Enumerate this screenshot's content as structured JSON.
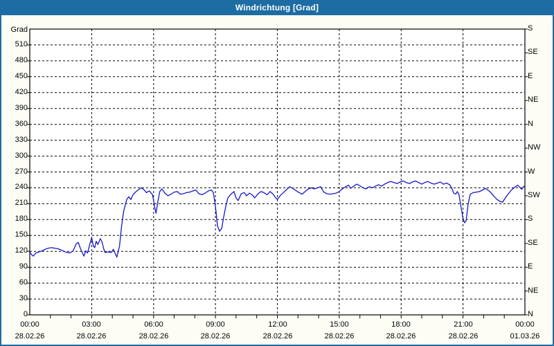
{
  "window": {
    "title": "Windrichtung [Grad]"
  },
  "colors": {
    "titlebar": "#1d6ca3",
    "window_border": "#1d6ca3",
    "background": "#fdfdf6",
    "plot_background": "#ffffff",
    "plot_border": "#000000",
    "grid": "#000000",
    "text": "#000000",
    "line": "#1515c8"
  },
  "chart_data": {
    "type": "line",
    "title": "Windrichtung [Grad]",
    "grid": "dashed",
    "y_axis_left": {
      "label": "Grad",
      "min": 0,
      "max": 540,
      "tick_step": 30,
      "tick_labels": [
        0,
        30,
        60,
        90,
        120,
        150,
        180,
        210,
        240,
        270,
        300,
        330,
        360,
        390,
        420,
        450,
        480,
        510
      ]
    },
    "y_axis_right": {
      "tick_step": 45,
      "labels": [
        {
          "deg": 540,
          "text": "S"
        },
        {
          "deg": 495,
          "text": "SE"
        },
        {
          "deg": 450,
          "text": "E"
        },
        {
          "deg": 405,
          "text": "NE"
        },
        {
          "deg": 360,
          "text": "N"
        },
        {
          "deg": 315,
          "text": "NW"
        },
        {
          "deg": 270,
          "text": "W"
        },
        {
          "deg": 225,
          "text": "SW"
        },
        {
          "deg": 180,
          "text": "S"
        },
        {
          "deg": 135,
          "text": "SE"
        },
        {
          "deg": 90,
          "text": "E"
        },
        {
          "deg": 45,
          "text": "NE"
        },
        {
          "deg": 0,
          "text": "N"
        }
      ]
    },
    "x_axis": {
      "min_hours": 0,
      "max_hours": 24,
      "major_tick_hours": 3,
      "minor_tick_hours": 1,
      "major_labels": [
        {
          "time": "00:00",
          "date": "28.02.26"
        },
        {
          "time": "03:00",
          "date": "28.02.26"
        },
        {
          "time": "06:00",
          "date": "28.02.26"
        },
        {
          "time": "09:00",
          "date": "28.02.26"
        },
        {
          "time": "12:00",
          "date": "28.02.26"
        },
        {
          "time": "15:00",
          "date": "28.02.26"
        },
        {
          "time": "18:00",
          "date": "28.02.26"
        },
        {
          "time": "21:00",
          "date": "28.02.26"
        },
        {
          "time": "00:00",
          "date": "01.03.26"
        }
      ]
    },
    "series": [
      {
        "name": "Windrichtung",
        "unit": "Grad",
        "color": "#1515c8",
        "points": [
          [
            0.0,
            119
          ],
          [
            0.08,
            114
          ],
          [
            0.17,
            111
          ],
          [
            0.3,
            117
          ],
          [
            0.45,
            119
          ],
          [
            0.6,
            121
          ],
          [
            0.75,
            124
          ],
          [
            0.9,
            126
          ],
          [
            1.05,
            127
          ],
          [
            1.2,
            126
          ],
          [
            1.35,
            125
          ],
          [
            1.5,
            123
          ],
          [
            1.65,
            120
          ],
          [
            1.8,
            118
          ],
          [
            1.95,
            117
          ],
          [
            2.1,
            121
          ],
          [
            2.25,
            134
          ],
          [
            2.35,
            137
          ],
          [
            2.45,
            126
          ],
          [
            2.55,
            117
          ],
          [
            2.62,
            111
          ],
          [
            2.72,
            121
          ],
          [
            2.8,
            117
          ],
          [
            2.92,
            135
          ],
          [
            3.0,
            146
          ],
          [
            3.08,
            130
          ],
          [
            3.15,
            127
          ],
          [
            3.22,
            139
          ],
          [
            3.3,
            133
          ],
          [
            3.42,
            144
          ],
          [
            3.5,
            138
          ],
          [
            3.58,
            125
          ],
          [
            3.65,
            118
          ],
          [
            3.8,
            119
          ],
          [
            3.95,
            118
          ],
          [
            4.05,
            124
          ],
          [
            4.12,
            118
          ],
          [
            4.22,
            109
          ],
          [
            4.35,
            130
          ],
          [
            4.45,
            168
          ],
          [
            4.55,
            196
          ],
          [
            4.7,
            218
          ],
          [
            4.8,
            223
          ],
          [
            4.9,
            218
          ],
          [
            5.0,
            227
          ],
          [
            5.1,
            231
          ],
          [
            5.25,
            236
          ],
          [
            5.4,
            240
          ],
          [
            5.55,
            236
          ],
          [
            5.65,
            231
          ],
          [
            5.8,
            234
          ],
          [
            5.95,
            227
          ],
          [
            6.05,
            205
          ],
          [
            6.12,
            192
          ],
          [
            6.2,
            212
          ],
          [
            6.3,
            233
          ],
          [
            6.4,
            238
          ],
          [
            6.55,
            230
          ],
          [
            6.7,
            225
          ],
          [
            6.85,
            228
          ],
          [
            7.0,
            232
          ],
          [
            7.15,
            233
          ],
          [
            7.3,
            228
          ],
          [
            7.45,
            229
          ],
          [
            7.6,
            231
          ],
          [
            7.75,
            232
          ],
          [
            7.9,
            234
          ],
          [
            8.05,
            236
          ],
          [
            8.2,
            229
          ],
          [
            8.35,
            227
          ],
          [
            8.5,
            230
          ],
          [
            8.65,
            234
          ],
          [
            8.8,
            236
          ],
          [
            8.9,
            231
          ],
          [
            9.0,
            205
          ],
          [
            9.1,
            168
          ],
          [
            9.2,
            158
          ],
          [
            9.3,
            163
          ],
          [
            9.4,
            185
          ],
          [
            9.5,
            205
          ],
          [
            9.6,
            221
          ],
          [
            9.75,
            228
          ],
          [
            9.9,
            233
          ],
          [
            10.0,
            221
          ],
          [
            10.1,
            216
          ],
          [
            10.25,
            229
          ],
          [
            10.4,
            231
          ],
          [
            10.5,
            225
          ],
          [
            10.65,
            230
          ],
          [
            10.8,
            226
          ],
          [
            10.9,
            221
          ],
          [
            11.05,
            228
          ],
          [
            11.2,
            233
          ],
          [
            11.35,
            231
          ],
          [
            11.5,
            227
          ],
          [
            11.65,
            233
          ],
          [
            11.8,
            228
          ],
          [
            11.9,
            222
          ],
          [
            12.0,
            218
          ],
          [
            12.15,
            226
          ],
          [
            12.3,
            231
          ],
          [
            12.45,
            237
          ],
          [
            12.6,
            242
          ],
          [
            12.75,
            239
          ],
          [
            12.9,
            235
          ],
          [
            13.05,
            231
          ],
          [
            13.2,
            228
          ],
          [
            13.35,
            233
          ],
          [
            13.5,
            238
          ],
          [
            13.65,
            240
          ],
          [
            13.8,
            238
          ],
          [
            13.95,
            240
          ],
          [
            14.1,
            242
          ],
          [
            14.25,
            232
          ],
          [
            14.4,
            229
          ],
          [
            14.55,
            228
          ],
          [
            14.7,
            229
          ],
          [
            14.85,
            230
          ],
          [
            15.0,
            233
          ],
          [
            15.15,
            238
          ],
          [
            15.3,
            242
          ],
          [
            15.45,
            245
          ],
          [
            15.55,
            239
          ],
          [
            15.7,
            243
          ],
          [
            15.85,
            247
          ],
          [
            16.0,
            244
          ],
          [
            16.15,
            240
          ],
          [
            16.3,
            238
          ],
          [
            16.45,
            242
          ],
          [
            16.6,
            240
          ],
          [
            16.75,
            243
          ],
          [
            16.9,
            246
          ],
          [
            17.05,
            243
          ],
          [
            17.2,
            247
          ],
          [
            17.35,
            250
          ],
          [
            17.5,
            252
          ],
          [
            17.65,
            250
          ],
          [
            17.8,
            248
          ],
          [
            17.95,
            251
          ],
          [
            18.1,
            253
          ],
          [
            18.25,
            250
          ],
          [
            18.4,
            248
          ],
          [
            18.55,
            251
          ],
          [
            18.7,
            253
          ],
          [
            18.85,
            250
          ],
          [
            19.0,
            247
          ],
          [
            19.15,
            250
          ],
          [
            19.3,
            252
          ],
          [
            19.45,
            249
          ],
          [
            19.6,
            247
          ],
          [
            19.75,
            249
          ],
          [
            19.9,
            251
          ],
          [
            20.05,
            247
          ],
          [
            20.2,
            249
          ],
          [
            20.35,
            246
          ],
          [
            20.45,
            240
          ],
          [
            20.55,
            230
          ],
          [
            20.65,
            228
          ],
          [
            20.72,
            233
          ],
          [
            20.8,
            228
          ],
          [
            20.9,
            205
          ],
          [
            21.0,
            182
          ],
          [
            21.08,
            174
          ],
          [
            21.15,
            178
          ],
          [
            21.25,
            210
          ],
          [
            21.35,
            228
          ],
          [
            21.5,
            231
          ],
          [
            21.65,
            232
          ],
          [
            21.8,
            233
          ],
          [
            21.95,
            236
          ],
          [
            22.1,
            239
          ],
          [
            22.2,
            236
          ],
          [
            22.35,
            231
          ],
          [
            22.5,
            224
          ],
          [
            22.65,
            218
          ],
          [
            22.8,
            214
          ],
          [
            22.92,
            213
          ],
          [
            23.05,
            221
          ],
          [
            23.2,
            229
          ],
          [
            23.35,
            236
          ],
          [
            23.5,
            241
          ],
          [
            23.65,
            245
          ],
          [
            23.75,
            241
          ],
          [
            23.85,
            237
          ],
          [
            23.95,
            243
          ],
          [
            24.0,
            242
          ]
        ]
      }
    ]
  }
}
